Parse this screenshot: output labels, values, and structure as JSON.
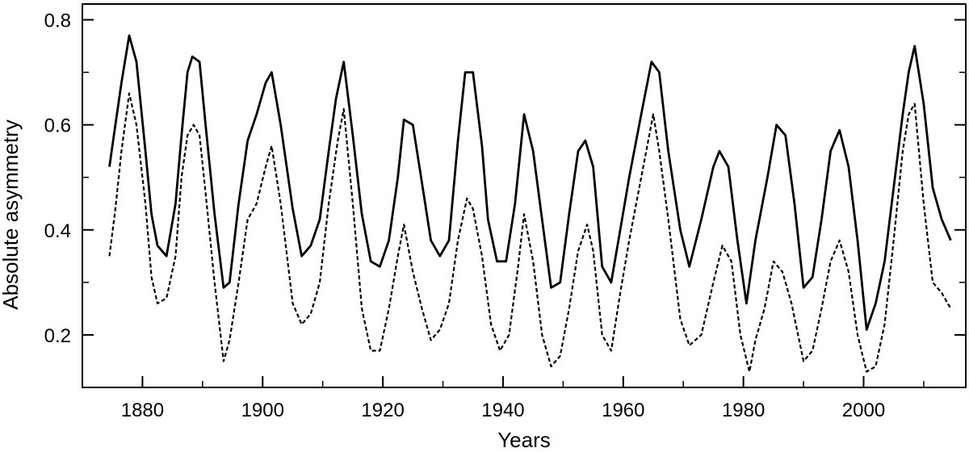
{
  "chart_data": {
    "type": "line",
    "title": "",
    "xlabel": "Years",
    "ylabel": "Absolute asymmetry",
    "xlim": [
      1870,
      2017
    ],
    "ylim": [
      0.1,
      0.83
    ],
    "x_ticks": [
      1880,
      1900,
      1920,
      1940,
      1960,
      1980,
      2000
    ],
    "y_ticks": [
      0.2,
      0.4,
      0.6,
      0.8
    ],
    "y_tick_labels": [
      "0.2",
      "0.4",
      "0.6",
      "0.8"
    ],
    "grid": false,
    "series": [
      {
        "style": "solid",
        "color": "#000000",
        "x": [
          1874.5,
          1875.5,
          1876.5,
          1877.8,
          1879,
          1880.5,
          1881.5,
          1882.5,
          1884,
          1885.5,
          1886.5,
          1887.5,
          1888.3,
          1889.5,
          1890.5,
          1892,
          1893.5,
          1894.5,
          1896,
          1897.5,
          1899,
          1900.5,
          1901.5,
          1903,
          1905,
          1906.5,
          1908,
          1909.5,
          1911,
          1912.2,
          1913.5,
          1915,
          1916.5,
          1918,
          1919.5,
          1921,
          1922.5,
          1923.5,
          1925,
          1926.5,
          1928,
          1929.5,
          1931,
          1932.5,
          1933.7,
          1935,
          1936.5,
          1937.5,
          1939,
          1940.5,
          1942,
          1943.5,
          1945,
          1946.5,
          1948,
          1949.5,
          1951,
          1952.5,
          1953.7,
          1955,
          1956.5,
          1958,
          1959.5,
          1961,
          1963,
          1964.7,
          1966,
          1967.5,
          1969.5,
          1971,
          1973,
          1975,
          1976,
          1977.5,
          1979,
          1980.5,
          1982,
          1984,
          1985.5,
          1987,
          1988.5,
          1990,
          1991.5,
          1993,
          1994.5,
          1996,
          1997.5,
          1999,
          2000.5,
          2002,
          2003.5,
          2005,
          2006.5,
          2007.5,
          2008.5,
          2010,
          2011.5,
          2013,
          2014.5
        ],
        "y": [
          0.52,
          0.6,
          0.68,
          0.77,
          0.72,
          0.55,
          0.43,
          0.37,
          0.35,
          0.45,
          0.58,
          0.7,
          0.73,
          0.72,
          0.6,
          0.43,
          0.29,
          0.3,
          0.45,
          0.57,
          0.62,
          0.68,
          0.7,
          0.6,
          0.44,
          0.35,
          0.37,
          0.42,
          0.55,
          0.65,
          0.72,
          0.58,
          0.43,
          0.34,
          0.33,
          0.38,
          0.5,
          0.61,
          0.6,
          0.49,
          0.38,
          0.35,
          0.38,
          0.57,
          0.7,
          0.7,
          0.56,
          0.42,
          0.34,
          0.34,
          0.45,
          0.62,
          0.55,
          0.42,
          0.29,
          0.3,
          0.43,
          0.55,
          0.57,
          0.52,
          0.33,
          0.3,
          0.4,
          0.5,
          0.62,
          0.72,
          0.7,
          0.55,
          0.4,
          0.33,
          0.42,
          0.52,
          0.55,
          0.52,
          0.38,
          0.26,
          0.38,
          0.5,
          0.6,
          0.58,
          0.45,
          0.29,
          0.31,
          0.42,
          0.55,
          0.59,
          0.52,
          0.38,
          0.21,
          0.26,
          0.34,
          0.48,
          0.62,
          0.7,
          0.75,
          0.64,
          0.48,
          0.42,
          0.38
        ]
      },
      {
        "style": "dashed",
        "color": "#000000",
        "x": [
          1874.5,
          1875.5,
          1876.5,
          1877.8,
          1879,
          1880.5,
          1881.5,
          1882.5,
          1884,
          1885.5,
          1886.5,
          1887.5,
          1888.5,
          1889.5,
          1890.5,
          1892,
          1893.5,
          1894.5,
          1896,
          1897.5,
          1899,
          1900.5,
          1901.5,
          1903,
          1905,
          1906.5,
          1908,
          1909.5,
          1911,
          1912.5,
          1913.5,
          1915,
          1916.5,
          1918,
          1919.5,
          1921,
          1922.5,
          1923.5,
          1925,
          1926.5,
          1928,
          1929.5,
          1931,
          1932.5,
          1934,
          1935,
          1936.5,
          1938,
          1939.5,
          1941,
          1942.5,
          1943.5,
          1945,
          1946.5,
          1948,
          1949.5,
          1951,
          1952.5,
          1954,
          1955,
          1956.5,
          1958,
          1959.5,
          1961,
          1963,
          1965,
          1966,
          1967.5,
          1969.5,
          1971,
          1973,
          1975,
          1976.5,
          1978,
          1979.5,
          1981,
          1982,
          1983.5,
          1985,
          1986.5,
          1988,
          1990,
          1991.5,
          1993,
          1994.5,
          1996,
          1997.5,
          1999,
          2000.5,
          2002,
          2003.5,
          2005,
          2006.5,
          2007.5,
          2008.5,
          2010,
          2011.5,
          2013,
          2014.5
        ],
        "y": [
          0.35,
          0.44,
          0.55,
          0.66,
          0.6,
          0.45,
          0.31,
          0.26,
          0.27,
          0.35,
          0.5,
          0.58,
          0.6,
          0.58,
          0.47,
          0.3,
          0.15,
          0.19,
          0.3,
          0.42,
          0.45,
          0.52,
          0.56,
          0.45,
          0.26,
          0.22,
          0.24,
          0.3,
          0.45,
          0.57,
          0.63,
          0.45,
          0.25,
          0.17,
          0.17,
          0.25,
          0.35,
          0.41,
          0.32,
          0.25,
          0.19,
          0.21,
          0.26,
          0.38,
          0.46,
          0.44,
          0.35,
          0.22,
          0.17,
          0.2,
          0.33,
          0.43,
          0.34,
          0.2,
          0.14,
          0.16,
          0.25,
          0.36,
          0.41,
          0.36,
          0.2,
          0.17,
          0.28,
          0.38,
          0.5,
          0.62,
          0.55,
          0.42,
          0.23,
          0.18,
          0.2,
          0.3,
          0.37,
          0.34,
          0.2,
          0.13,
          0.19,
          0.25,
          0.34,
          0.32,
          0.26,
          0.15,
          0.17,
          0.25,
          0.34,
          0.38,
          0.32,
          0.2,
          0.13,
          0.14,
          0.22,
          0.38,
          0.55,
          0.62,
          0.64,
          0.45,
          0.3,
          0.28,
          0.25
        ]
      }
    ]
  }
}
